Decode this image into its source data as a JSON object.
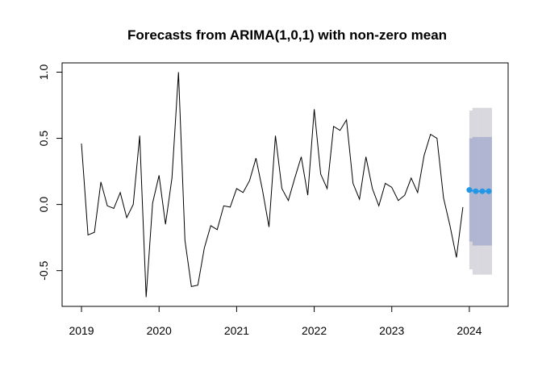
{
  "chart_data": {
    "type": "line",
    "title": "Forecasts from ARIMA(1,0,1) with non-zero mean",
    "xlabel": "",
    "ylabel": "",
    "xlim": [
      2018.75,
      2024.5
    ],
    "ylim": [
      -0.77,
      1.07
    ],
    "x_ticks": [
      2019,
      2020,
      2021,
      2022,
      2023,
      2024
    ],
    "x_tick_labels": [
      "2019",
      "2020",
      "2021",
      "2022",
      "2023",
      "2024"
    ],
    "y_ticks": [
      -0.5,
      0.0,
      0.5,
      1.0
    ],
    "y_tick_labels": [
      "-0.5",
      "0.0",
      "0.5",
      "1.0"
    ],
    "grid": false,
    "series": [
      {
        "role": "observed",
        "color": "#000000",
        "start": 2019,
        "frequency": 12,
        "values": [
          0.46,
          -0.23,
          -0.21,
          0.17,
          -0.01,
          -0.03,
          0.09,
          -0.1,
          0.0,
          0.52,
          -0.7,
          0.01,
          0.22,
          -0.15,
          0.2,
          1.0,
          -0.27,
          -0.62,
          -0.61,
          -0.33,
          -0.16,
          -0.19,
          -0.01,
          -0.02,
          0.12,
          0.09,
          0.18,
          0.35,
          0.11,
          -0.17,
          0.52,
          0.12,
          0.03,
          0.2,
          0.36,
          0.07,
          0.72,
          0.23,
          0.12,
          0.59,
          0.56,
          0.64,
          0.16,
          0.04,
          0.36,
          0.12,
          -0.01,
          0.16,
          0.13,
          0.03,
          0.07,
          0.2,
          0.09,
          0.37,
          0.53,
          0.5,
          0.05,
          -0.16,
          -0.4,
          -0.02
        ]
      },
      {
        "role": "forecast",
        "color": "#2297e6",
        "x": [
          2024.0,
          2024.083,
          2024.167,
          2024.25
        ],
        "values": [
          0.11,
          0.1,
          0.1,
          0.1
        ],
        "lower80": [
          -0.28,
          -0.31,
          -0.31,
          -0.31
        ],
        "upper80": [
          0.5,
          0.51,
          0.51,
          0.51
        ],
        "lower95": [
          -0.49,
          -0.53,
          -0.53,
          -0.53
        ],
        "upper95": [
          0.71,
          0.73,
          0.73,
          0.73
        ],
        "color80": "#b0b5d2",
        "color95": "#d8d8de"
      }
    ]
  }
}
